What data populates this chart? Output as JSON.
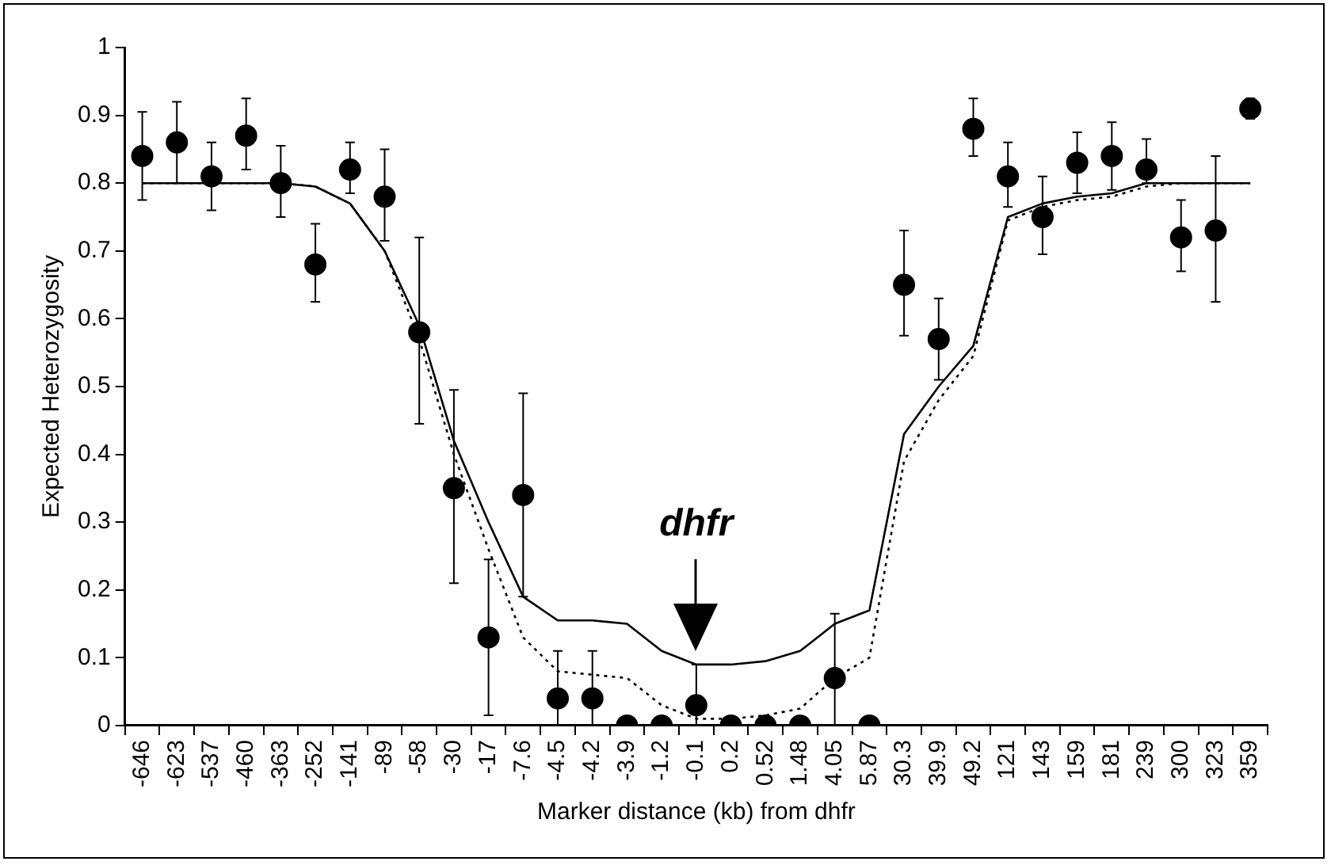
{
  "chart_data": {
    "type": "scatter",
    "xlabel": "Marker distance (kb) from dhfr",
    "ylabel": "Expected Heterozygosity",
    "categories": [
      "-646",
      "-623",
      "-537",
      "-460",
      "-363",
      "-252",
      "-141",
      "-89",
      "-58",
      "-30",
      "-17",
      "-7.6",
      "-4.5",
      "-4.2",
      "-3.9",
      "-1.2",
      "-0.1",
      "0.2",
      "0.52",
      "1.48",
      "4.05",
      "5.87",
      "30.3",
      "39.9",
      "49.2",
      "121",
      "143",
      "159",
      "181",
      "239",
      "300",
      "323",
      "359"
    ],
    "ylim": [
      0,
      1
    ],
    "yticks": [
      0,
      0.1,
      0.2,
      0.3,
      0.4,
      0.5,
      0.6,
      0.7,
      0.8,
      0.9,
      1
    ],
    "grid": false,
    "legend": false,
    "series": [
      {
        "type": "line",
        "color": "#000000",
        "marker": "none",
        "line_style": "solid",
        "values": [
          0.8,
          0.8,
          0.8,
          0.8,
          0.8,
          0.795,
          0.77,
          0.7,
          0.59,
          0.42,
          0.3,
          0.19,
          0.155,
          0.155,
          0.15,
          0.11,
          0.09,
          0.09,
          0.095,
          0.11,
          0.15,
          0.17,
          0.43,
          0.5,
          0.56,
          0.75,
          0.77,
          0.78,
          0.785,
          0.8,
          0.8,
          0.8,
          0.8
        ]
      },
      {
        "type": "line",
        "color": "#000000",
        "marker": "none",
        "line_style": "dotted",
        "values": [
          0.8,
          0.8,
          0.8,
          0.8,
          0.8,
          0.795,
          0.77,
          0.7,
          0.57,
          0.4,
          0.26,
          0.13,
          0.08,
          0.075,
          0.07,
          0.03,
          0.01,
          0.01,
          0.015,
          0.025,
          0.07,
          0.1,
          0.39,
          0.48,
          0.545,
          0.745,
          0.765,
          0.775,
          0.78,
          0.795,
          0.8,
          0.8,
          0.8
        ]
      },
      {
        "color": "#000000",
        "marker": "circle",
        "values": [
          0.84,
          0.86,
          0.81,
          0.87,
          0.8,
          0.68,
          0.82,
          0.78,
          0.58,
          0.35,
          0.13,
          0.34,
          0.04,
          0.04,
          0,
          0,
          0.03,
          0,
          0,
          0,
          0.07,
          0,
          0.65,
          0.57,
          0.88,
          0.81,
          0.75,
          0.83,
          0.84,
          0.82,
          0.72,
          0.73,
          0.91
        ],
        "errors": [
          [
            0.775,
            0.905
          ],
          [
            0.8,
            0.92
          ],
          [
            0.76,
            0.86
          ],
          [
            0.82,
            0.925
          ],
          [
            0.75,
            0.855
          ],
          [
            0.625,
            0.74
          ],
          [
            0.785,
            0.86
          ],
          [
            0.715,
            0.85
          ],
          [
            0.445,
            0.72
          ],
          [
            0.21,
            0.495
          ],
          [
            0.015,
            0.245
          ],
          [
            0.19,
            0.49
          ],
          [
            0,
            0.11
          ],
          [
            0,
            0.11
          ],
          null,
          null,
          [
            0,
            0.09
          ],
          null,
          null,
          null,
          [
            0,
            0.165
          ],
          null,
          [
            0.575,
            0.73
          ],
          [
            0.51,
            0.63
          ],
          [
            0.84,
            0.925
          ],
          [
            0.765,
            0.86
          ],
          [
            0.695,
            0.81
          ],
          [
            0.785,
            0.875
          ],
          [
            0.79,
            0.89
          ],
          [
            0.8,
            0.865
          ],
          [
            0.67,
            0.775
          ],
          [
            0.625,
            0.84
          ],
          [
            0.895,
            0.925
          ]
        ]
      }
    ],
    "annotations": [
      {
        "text": "dhfr",
        "x": "-0.1",
        "y": 0.1
      }
    ]
  }
}
